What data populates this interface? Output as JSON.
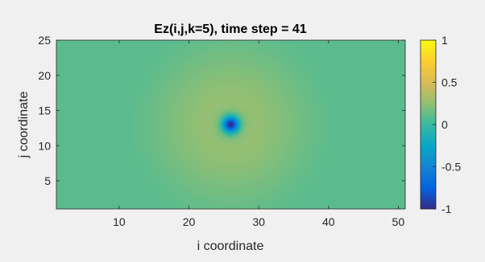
{
  "figure": {
    "background": "#f0f0f0"
  },
  "chart_data": {
    "type": "heatmap",
    "title": "Ez(i,j,k=5), time step = 41",
    "xlabel": "i coordinate",
    "ylabel": "j coordinate",
    "xlim": [
      1,
      51
    ],
    "ylim": [
      1,
      25
    ],
    "xticks": [
      10,
      20,
      30,
      40,
      50
    ],
    "yticks": [
      5,
      10,
      15,
      20,
      25
    ],
    "colormap": "parula",
    "clim": [
      -1,
      1
    ],
    "colorbar_ticks": [
      1,
      0.5,
      0,
      -0.5,
      -1
    ],
    "colorbar_tick_labels": [
      "1",
      "0.5",
      "0",
      "-0.5",
      "-1"
    ],
    "field": {
      "source_center": [
        26,
        13
      ],
      "center_value": -1,
      "near_ring_peak_value": 0.28,
      "near_ring_radius": 7.5,
      "outer_edge_radius": 15,
      "background_value": 0.1
    }
  }
}
